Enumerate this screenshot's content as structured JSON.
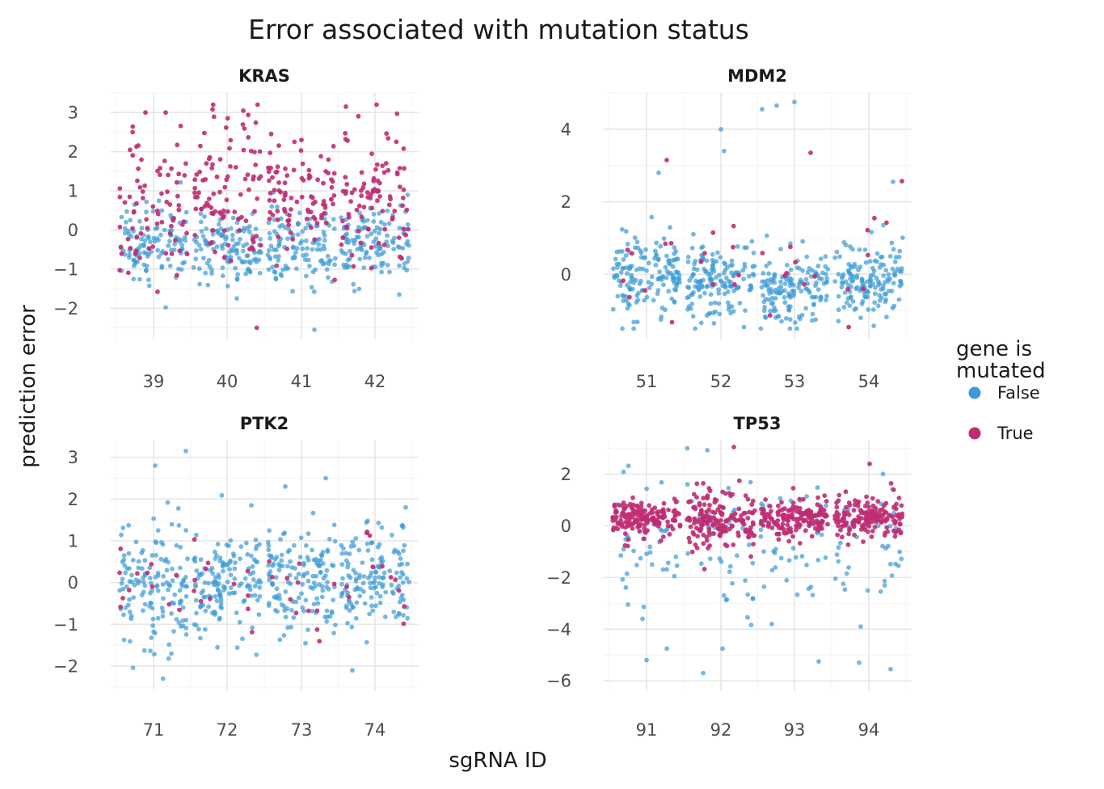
{
  "chart_data": {
    "type": "scatter",
    "title": "Error associated with mutation status",
    "xlabel": "sgRNA ID",
    "ylabel": "prediction error",
    "legend": {
      "title": "gene is\nmutated",
      "placement": "right",
      "entries": [
        {
          "name": "False",
          "color": "#3c9ad6"
        },
        {
          "name": "True",
          "color": "#bf2c72"
        }
      ]
    },
    "grid": true,
    "panels": [
      {
        "name": "KRAS",
        "categories": [
          "39",
          "40",
          "41",
          "42"
        ],
        "ylim": [
          -2.8,
          3.5
        ],
        "yticks": [
          -2,
          -1,
          0,
          1,
          2,
          3
        ],
        "groups": [
          {
            "sgRNA": "39",
            "false_mean": -0.35,
            "false_sd": 0.5,
            "true_mean": 0.6,
            "true_sd": 0.85,
            "n_false": 110,
            "n_true": 75,
            "extremes": [
              {
                "y": -1.98,
                "dx": 0.15,
                "mut": false
              },
              {
                "y": 3.0,
                "dx": -0.1,
                "mut": true
              },
              {
                "y": 3.0,
                "dx": 0.15,
                "mut": true
              }
            ]
          },
          {
            "sgRNA": "40",
            "false_mean": -0.5,
            "false_sd": 0.45,
            "true_mean": 0.9,
            "true_sd": 1.0,
            "n_false": 120,
            "n_true": 95,
            "extremes": [
              {
                "y": -1.75,
                "dx": 0.12,
                "mut": false
              },
              {
                "y": 3.08,
                "dx": -0.18,
                "mut": true
              },
              {
                "y": 3.05,
                "dx": 0.2,
                "mut": true
              }
            ]
          },
          {
            "sgRNA": "41",
            "false_mean": -0.4,
            "false_sd": 0.5,
            "true_mean": 0.7,
            "true_sd": 0.8,
            "n_false": 115,
            "n_true": 90,
            "extremes": [
              {
                "y": -2.55,
                "dx": 0.16,
                "mut": false
              },
              {
                "y": 2.3,
                "dx": 0.0,
                "mut": true
              }
            ]
          },
          {
            "sgRNA": "42",
            "false_mean": -0.35,
            "false_sd": 0.5,
            "true_mean": 0.8,
            "true_sd": 1.0,
            "n_false": 115,
            "n_true": 90,
            "extremes": [
              {
                "y": -1.65,
                "dx": 0.3,
                "mut": false
              },
              {
                "y": 3.2,
                "dx": 0.02,
                "mut": true
              },
              {
                "y": 3.15,
                "dx": -0.36,
                "mut": true
              }
            ]
          }
        ]
      },
      {
        "name": "MDM2",
        "categories": [
          "51",
          "52",
          "53",
          "54"
        ],
        "ylim": [
          -1.8,
          5.0
        ],
        "yticks": [
          0,
          2,
          4
        ],
        "groups": [
          {
            "sgRNA": "51",
            "false_mean": -0.15,
            "false_sd": 0.55,
            "true_mean": 0.2,
            "true_sd": 0.9,
            "n_false": 150,
            "n_true": 8,
            "extremes": [
              {
                "y": -1.5,
                "dx": -0.3,
                "mut": false
              },
              {
                "y": 3.15,
                "dx": 0.25,
                "mut": true
              },
              {
                "y": 2.8,
                "dx": 0.15,
                "mut": false
              }
            ]
          },
          {
            "sgRNA": "52",
            "false_mean": -0.15,
            "false_sd": 0.5,
            "true_mean": 0.3,
            "true_sd": 0.8,
            "n_false": 150,
            "n_true": 8,
            "extremes": [
              {
                "y": 4.0,
                "dx": 0.0,
                "mut": false
              },
              {
                "y": 3.4,
                "dx": 0.04,
                "mut": false
              },
              {
                "y": -1.0,
                "dx": 0.3,
                "mut": false
              }
            ]
          },
          {
            "sgRNA": "53",
            "false_mean": -0.35,
            "false_sd": 0.5,
            "true_mean": 0.5,
            "true_sd": 1.0,
            "n_false": 150,
            "n_true": 8,
            "extremes": [
              {
                "y": 4.75,
                "dx": 0.0,
                "mut": false
              },
              {
                "y": 4.65,
                "dx": -0.22,
                "mut": false
              },
              {
                "y": 4.55,
                "dx": -0.4,
                "mut": false
              },
              {
                "y": 3.35,
                "dx": 0.2,
                "mut": true
              }
            ]
          },
          {
            "sgRNA": "54",
            "false_mean": -0.15,
            "false_sd": 0.55,
            "true_mean": 0.2,
            "true_sd": 0.9,
            "n_false": 150,
            "n_true": 8,
            "extremes": [
              {
                "y": 2.55,
                "dx": 0.3,
                "mut": false
              },
              {
                "y": -1.2,
                "dx": -0.1,
                "mut": false
              }
            ]
          }
        ]
      },
      {
        "name": "PTK2",
        "categories": [
          "71",
          "72",
          "73",
          "74"
        ],
        "ylim": [
          -2.6,
          3.4
        ],
        "yticks": [
          -2,
          -1,
          0,
          1,
          2,
          3
        ],
        "groups": [
          {
            "sgRNA": "71",
            "false_mean": -0.05,
            "false_sd": 0.75,
            "true_mean": -0.2,
            "true_sd": 0.5,
            "n_false": 140,
            "n_true": 12,
            "extremes": [
              {
                "y": 2.8,
                "dx": 0.02,
                "mut": false
              },
              {
                "y": 3.15,
                "dx": 0.4,
                "mut": false
              },
              {
                "y": -1.7,
                "dx": 0.22,
                "mut": false
              }
            ]
          },
          {
            "sgRNA": "72",
            "false_mean": -0.05,
            "false_sd": 0.6,
            "true_mean": -0.1,
            "true_sd": 0.5,
            "n_false": 140,
            "n_true": 12,
            "extremes": [
              {
                "y": -1.55,
                "dx": -0.12,
                "mut": false
              },
              {
                "y": 1.85,
                "dx": 0.3,
                "mut": false
              }
            ]
          },
          {
            "sgRNA": "73",
            "false_mean": 0.05,
            "false_sd": 0.65,
            "true_mean": -0.2,
            "true_sd": 0.5,
            "n_false": 140,
            "n_true": 12,
            "extremes": [
              {
                "y": 2.5,
                "dx": 0.3,
                "mut": false
              },
              {
                "y": 2.3,
                "dx": -0.2,
                "mut": false
              }
            ]
          },
          {
            "sgRNA": "74",
            "false_mean": 0.05,
            "false_sd": 0.6,
            "true_mean": 0.1,
            "true_sd": 0.6,
            "n_false": 140,
            "n_true": 12,
            "extremes": [
              {
                "y": -2.1,
                "dx": -0.28,
                "mut": false
              },
              {
                "y": 1.8,
                "dx": 0.38,
                "mut": false
              }
            ]
          }
        ]
      },
      {
        "name": "TP53",
        "categories": [
          "91",
          "92",
          "93",
          "94"
        ],
        "ylim": [
          -6.4,
          3.3
        ],
        "yticks": [
          -6,
          -4,
          -2,
          0,
          2
        ],
        "groups": [
          {
            "sgRNA": "91",
            "false_mean": -0.6,
            "false_sd": 1.3,
            "true_mean": 0.3,
            "true_sd": 0.35,
            "n_false": 40,
            "n_true": 160,
            "extremes": [
              {
                "y": -5.2,
                "dx": 0.0,
                "mut": false
              },
              {
                "y": -4.75,
                "dx": 0.25,
                "mut": false
              },
              {
                "y": -3.6,
                "dx": -0.05,
                "mut": false
              }
            ]
          },
          {
            "sgRNA": "92",
            "false_mean": -0.8,
            "false_sd": 1.5,
            "true_mean": 0.2,
            "true_sd": 0.6,
            "n_false": 40,
            "n_true": 170,
            "extremes": [
              {
                "y": -5.7,
                "dx": -0.22,
                "mut": false
              },
              {
                "y": -4.75,
                "dx": 0.02,
                "mut": false
              },
              {
                "y": 3.05,
                "dx": 0.16,
                "mut": true
              }
            ]
          },
          {
            "sgRNA": "93",
            "false_mean": -0.5,
            "false_sd": 1.2,
            "true_mean": 0.3,
            "true_sd": 0.35,
            "n_false": 40,
            "n_true": 160,
            "extremes": [
              {
                "y": -5.25,
                "dx": 0.3,
                "mut": false
              },
              {
                "y": -3.8,
                "dx": -0.28,
                "mut": false
              }
            ]
          },
          {
            "sgRNA": "94",
            "false_mean": -0.6,
            "false_sd": 1.3,
            "true_mean": 0.3,
            "true_sd": 0.45,
            "n_false": 40,
            "n_true": 165,
            "extremes": [
              {
                "y": -5.55,
                "dx": 0.27,
                "mut": false
              },
              {
                "y": -5.3,
                "dx": -0.12,
                "mut": false
              },
              {
                "y": -3.9,
                "dx": -0.1,
                "mut": false
              },
              {
                "y": 2.4,
                "dx": 0.01,
                "mut": true
              }
            ]
          }
        ]
      }
    ]
  }
}
